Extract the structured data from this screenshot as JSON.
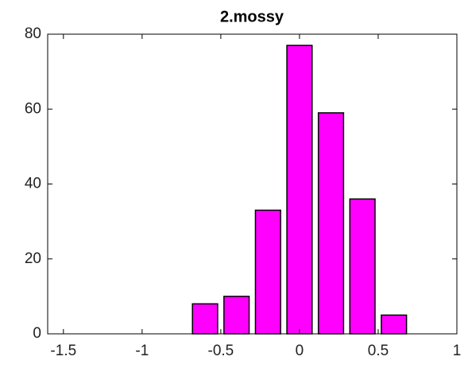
{
  "chart_data": {
    "type": "bar",
    "title": "2.mossy",
    "x": [
      -1.4,
      -1.2,
      -1.0,
      -0.8,
      -0.6,
      -0.4,
      -0.2,
      0,
      0.2,
      0.4,
      0.6,
      0.8
    ],
    "values": [
      0,
      0,
      0,
      0,
      8,
      10,
      33,
      77,
      59,
      36,
      5,
      0
    ],
    "color": "#ff00ff",
    "xlim": [
      -1.6,
      1
    ],
    "xticks": [
      -1.5,
      -1,
      -0.5,
      0,
      0.5,
      1
    ],
    "ylim": [
      0,
      80
    ],
    "yticks": [
      0,
      20,
      40,
      60,
      80
    ]
  }
}
